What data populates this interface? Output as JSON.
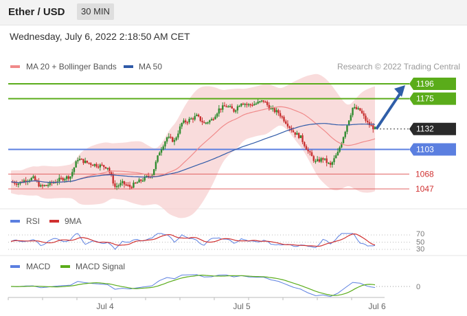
{
  "header": {
    "title": "Ether / USD",
    "timeframe": "30 MIN"
  },
  "datetime": "Wednesday, July 6, 2022 2:18:50 AM CET",
  "credit": "Research © 2022 Trading Central",
  "colors": {
    "green": "#5aac1a",
    "blue": "#5b7fe0",
    "red": "#e06060",
    "ma50": "#2f5aa8",
    "bb": "#f6cdcd",
    "up": "#2e8b2e",
    "down": "#c83030",
    "arrow": "#2f5ea8"
  },
  "chart_data": {
    "type": "candlestick",
    "legend": [
      {
        "name": "MA 20 + Bollinger Bands",
        "color": "#f08a8a"
      },
      {
        "name": "MA 50",
        "color": "#2f5aa8"
      }
    ],
    "x_ticks": [
      "Jul 4",
      "Jul 5",
      "Jul 6"
    ],
    "levels": [
      {
        "label": "1196",
        "value": 1196,
        "kind": "resistance",
        "color": "#5aac1a"
      },
      {
        "label": "1175",
        "value": 1175,
        "kind": "resistance",
        "color": "#5aac1a"
      },
      {
        "label": "1132",
        "value": 1132,
        "kind": "last",
        "color": "#2a2a2a"
      },
      {
        "label": "1103",
        "value": 1103,
        "kind": "pivot",
        "color": "#5b7fe0"
      },
      {
        "label": "1068",
        "value": 1068,
        "kind": "support",
        "color": "#e06060"
      },
      {
        "label": "1047",
        "value": 1047,
        "kind": "support",
        "color": "#e06060"
      }
    ],
    "price_path": [
      1057,
      1055,
      1060,
      1062,
      1050,
      1053,
      1058,
      1062,
      1065,
      1090,
      1085,
      1082,
      1080,
      1078,
      1050,
      1055,
      1050,
      1056,
      1062,
      1068,
      1100,
      1120,
      1115,
      1140,
      1145,
      1150,
      1140,
      1145,
      1160,
      1165,
      1158,
      1170,
      1166,
      1168,
      1172,
      1160,
      1155,
      1142,
      1128,
      1120,
      1100,
      1085,
      1090,
      1080,
      1098,
      1130,
      1162,
      1158,
      1140,
      1132
    ],
    "rsi_panel": {
      "legend": [
        {
          "name": "RSI",
          "color": "#5b7fe0"
        },
        {
          "name": "9MA",
          "color": "#d03030"
        }
      ],
      "levels": [
        "70",
        "50",
        "30"
      ]
    },
    "macd_panel": {
      "legend": [
        {
          "name": "MACD",
          "color": "#5b7fe0"
        },
        {
          "name": "MACD Signal",
          "color": "#5aac1a"
        }
      ],
      "levels": [
        "0"
      ]
    }
  }
}
